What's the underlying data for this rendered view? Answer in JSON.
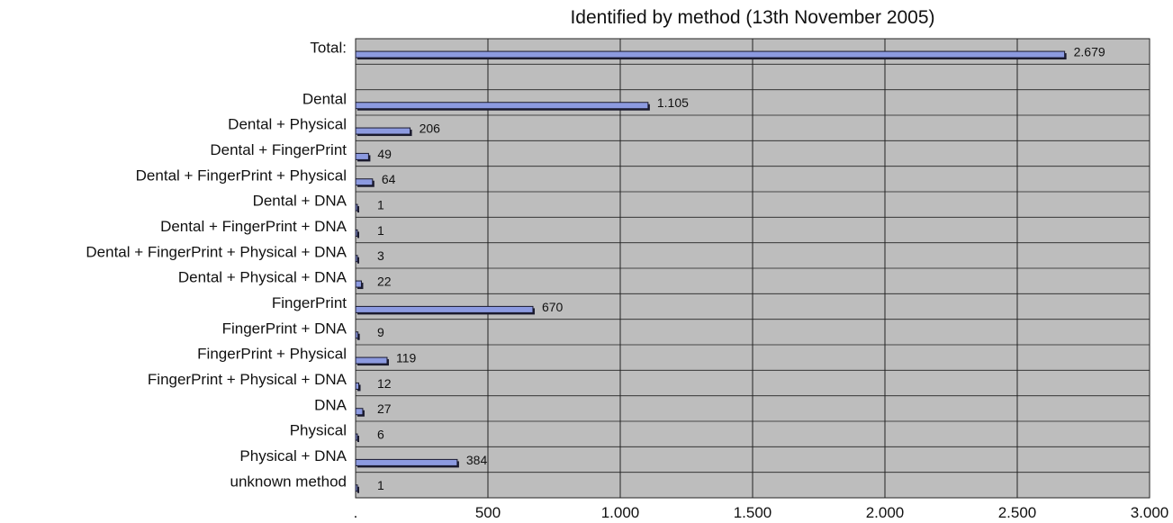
{
  "chart_data": {
    "type": "bar",
    "orientation": "horizontal",
    "title": "Identified by method (13th November 2005)",
    "xlabel": "",
    "ylabel": "",
    "xlim": [
      0,
      3000
    ],
    "grid": true,
    "ticks": [
      {
        "value": 0,
        "label": "."
      },
      {
        "value": 500,
        "label": "500"
      },
      {
        "value": 1000,
        "label": "1.000"
      },
      {
        "value": 1500,
        "label": "1.500"
      },
      {
        "value": 2000,
        "label": "2.000"
      },
      {
        "value": 2500,
        "label": "2.500"
      },
      {
        "value": 3000,
        "label": "3.000"
      }
    ],
    "categories": [
      "Total:",
      "",
      "Dental",
      "Dental + Physical",
      "Dental + FingerPrint",
      "Dental + FingerPrint + Physical",
      "Dental + DNA",
      "Dental + FingerPrint + DNA",
      "Dental + FingerPrint + Physical + DNA",
      "Dental + Physical + DNA",
      "FingerPrint",
      "FingerPrint + DNA",
      "FingerPrint + Physical",
      "FingerPrint + Physical + DNA",
      "DNA",
      "Physical",
      "Physical + DNA",
      "unknown method"
    ],
    "values": [
      2679,
      null,
      1105,
      206,
      49,
      64,
      1,
      1,
      3,
      22,
      670,
      9,
      119,
      12,
      27,
      6,
      384,
      1
    ],
    "value_labels": [
      "2.679",
      "",
      "1.105",
      "206",
      "49",
      "64",
      "1",
      "1",
      "3",
      "22",
      "670",
      "9",
      "119",
      "12",
      "27",
      "6",
      "384",
      "1"
    ],
    "colors": {
      "plot_bg": "#bdbdbd",
      "bar_fill": "#8c9ae0",
      "bar_edge": "#1a1a2e",
      "grid": "#222222"
    }
  }
}
